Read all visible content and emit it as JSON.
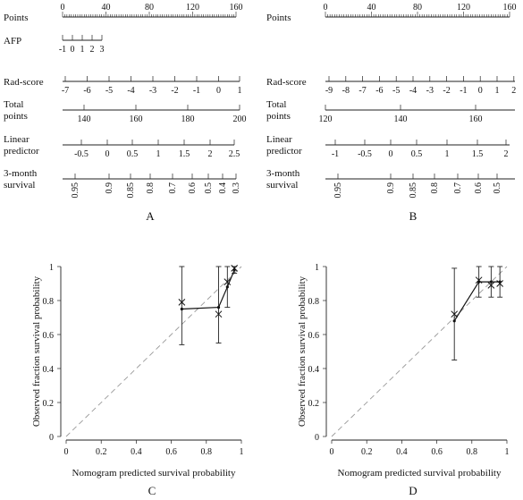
{
  "nomogramA": {
    "panel_label": "A",
    "rows": [
      {
        "label": [
          "Points"
        ],
        "ticks": [
          "0",
          "40",
          "80",
          "120",
          "160"
        ],
        "minor": true
      },
      {
        "label": [
          "AFP"
        ],
        "ticks": [
          "-1",
          "0",
          "1",
          "2",
          "3"
        ]
      },
      {
        "label": [
          "Rad-score"
        ],
        "ticks": [
          "-7",
          "-6",
          "-5",
          "-4",
          "-3",
          "-2",
          "-1",
          "0",
          "1"
        ]
      },
      {
        "label": [
          "Total",
          "points"
        ],
        "ticks": [
          "140",
          "160",
          "180",
          "200"
        ]
      },
      {
        "label": [
          "Linear",
          "predictor"
        ],
        "ticks": [
          "-0.5",
          "0",
          "0.5",
          "1",
          "1.5",
          "2",
          "2.5"
        ]
      },
      {
        "label": [
          "3-month",
          "survival"
        ],
        "ticks": [
          "0.95",
          "0.9",
          "0.85",
          "0.8",
          "0.7",
          "0.6",
          "0.5",
          "0.4",
          "0.3"
        ],
        "rotated": true
      }
    ]
  },
  "nomogramB": {
    "panel_label": "B",
    "rows": [
      {
        "label": [
          "Points"
        ],
        "ticks": [
          "0",
          "40",
          "80",
          "120",
          "160"
        ],
        "minor": true
      },
      {
        "label": [
          "Rad-score"
        ],
        "ticks": [
          "-9",
          "-8",
          "-7",
          "-6",
          "-5",
          "-4",
          "-3",
          "-2",
          "-1",
          "0",
          "1",
          "2"
        ]
      },
      {
        "label": [
          "Total",
          "points"
        ],
        "ticks": [
          "120",
          "140",
          "160"
        ]
      },
      {
        "label": [
          "Linear",
          "predictor"
        ],
        "ticks": [
          "-1",
          "-0.5",
          "0",
          "0.5",
          "1",
          "1.5",
          "2"
        ]
      },
      {
        "label": [
          "3-month",
          "survival"
        ],
        "ticks": [
          "0.95",
          "0.9",
          "0.85",
          "0.8",
          "0.7",
          "0.6",
          "0.5"
        ],
        "rotated": true
      }
    ]
  },
  "chart_data": [
    {
      "type": "scatter",
      "panel_label": "C",
      "xlabel": "Nomogram predicted survival probability",
      "ylabel": "Observed fraction survival probability",
      "xlim": [
        0,
        1
      ],
      "ylim": [
        0,
        1
      ],
      "xticks": [
        "0",
        "0.2",
        "0.4",
        "0.6",
        "0.8",
        "1"
      ],
      "yticks": [
        "0",
        "0.2",
        "0.4",
        "0.6",
        "0.8",
        "1"
      ],
      "reference_line": "diagonal dashed",
      "points": [
        {
          "x": 0.66,
          "y": 0.75,
          "lo": 0.54,
          "hi": 1.0,
          "cross": 0.79
        },
        {
          "x": 0.87,
          "y": 0.76,
          "lo": 0.55,
          "hi": 1.0,
          "cross": 0.72
        },
        {
          "x": 0.92,
          "y": 0.88,
          "lo": 0.76,
          "hi": 1.0,
          "cross": 0.91
        },
        {
          "x": 0.96,
          "y": 0.98,
          "lo": 0.96,
          "hi": 1.0,
          "cross": 0.99
        }
      ]
    },
    {
      "type": "scatter",
      "panel_label": "D",
      "xlabel": "Nomogram predicted survival probability",
      "ylabel": "Observed fraction survival probability",
      "xlim": [
        0,
        1
      ],
      "ylim": [
        0,
        1
      ],
      "xticks": [
        "0",
        "0.2",
        "0.4",
        "0.6",
        "0.8",
        "1"
      ],
      "yticks": [
        "0",
        "0.2",
        "0.4",
        "0.6",
        "0.8",
        "1"
      ],
      "reference_line": "diagonal dashed",
      "points": [
        {
          "x": 0.7,
          "y": 0.68,
          "lo": 0.45,
          "hi": 0.99,
          "cross": 0.72
        },
        {
          "x": 0.84,
          "y": 0.91,
          "lo": 0.82,
          "hi": 1.0,
          "cross": 0.92
        },
        {
          "x": 0.91,
          "y": 0.91,
          "lo": 0.82,
          "hi": 1.0,
          "cross": 0.89
        },
        {
          "x": 0.96,
          "y": 0.91,
          "lo": 0.82,
          "hi": 1.0,
          "cross": 0.9
        }
      ]
    }
  ]
}
